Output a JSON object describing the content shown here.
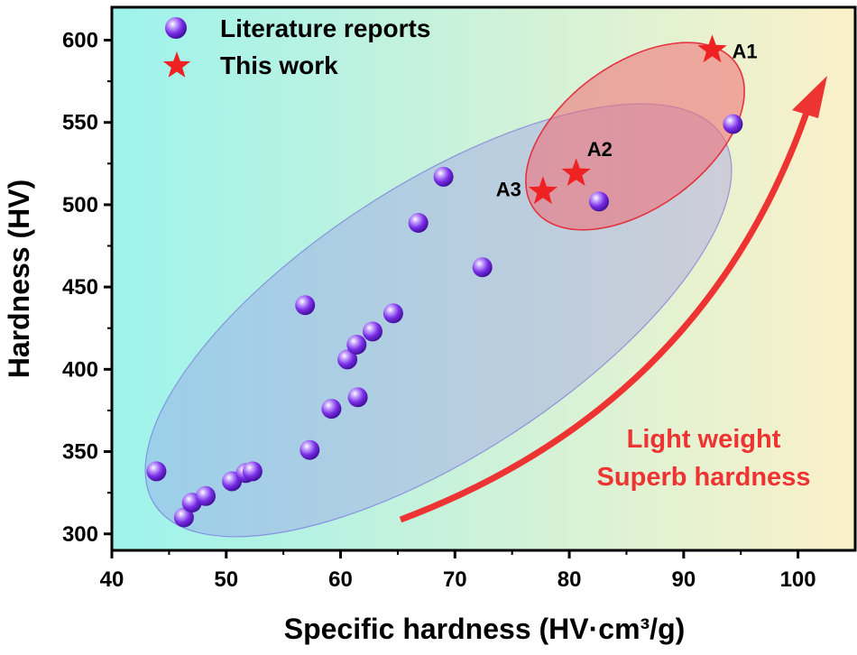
{
  "chart_data": {
    "type": "scatter",
    "xlabel": "Specific hardness (HV·cm³/g)",
    "ylabel": "Hardness (HV)",
    "xlim": [
      40,
      105
    ],
    "ylim": [
      290,
      620
    ],
    "xticks": [
      40,
      50,
      60,
      70,
      80,
      90,
      100
    ],
    "yticks": [
      300,
      350,
      400,
      450,
      500,
      550,
      600
    ],
    "legend_position": "top-left",
    "series": [
      {
        "name": "Literature reports",
        "marker": "sphere",
        "color": "#7a2ee6",
        "points": [
          {
            "x": 43.9,
            "y": 338
          },
          {
            "x": 46.3,
            "y": 310
          },
          {
            "x": 47.0,
            "y": 319
          },
          {
            "x": 48.2,
            "y": 323
          },
          {
            "x": 50.5,
            "y": 332
          },
          {
            "x": 51.7,
            "y": 337
          },
          {
            "x": 52.3,
            "y": 338
          },
          {
            "x": 57.3,
            "y": 351
          },
          {
            "x": 56.9,
            "y": 439
          },
          {
            "x": 59.2,
            "y": 376
          },
          {
            "x": 60.6,
            "y": 406
          },
          {
            "x": 61.4,
            "y": 415
          },
          {
            "x": 61.5,
            "y": 383
          },
          {
            "x": 62.8,
            "y": 423
          },
          {
            "x": 64.6,
            "y": 434
          },
          {
            "x": 66.8,
            "y": 489
          },
          {
            "x": 69.0,
            "y": 517
          },
          {
            "x": 72.4,
            "y": 462
          },
          {
            "x": 82.6,
            "y": 502
          },
          {
            "x": 94.3,
            "y": 549
          }
        ]
      },
      {
        "name": "This work",
        "marker": "star",
        "color": "#ee2222",
        "points": [
          {
            "x": 92.5,
            "y": 594,
            "label": "A1"
          },
          {
            "x": 80.6,
            "y": 519,
            "label": "A2"
          },
          {
            "x": 77.7,
            "y": 508,
            "label": "A3"
          }
        ]
      }
    ],
    "annotation": {
      "line1": "Light weight",
      "line2": "Superb hardness"
    }
  },
  "colors": {
    "bg_left": "#9ef3ec",
    "bg_right": "#fbf1c8",
    "literature_region": "#8f86ea",
    "work_region": "#f36a72",
    "arrow": "#ee3333"
  }
}
